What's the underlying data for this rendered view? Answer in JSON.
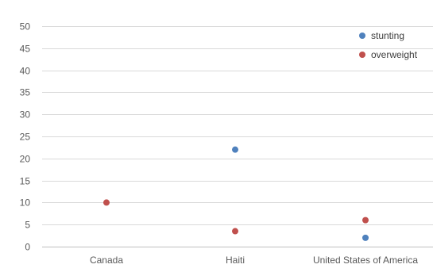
{
  "chart_data": {
    "type": "scatter",
    "title": "",
    "xlabel": "",
    "ylabel": "",
    "categories": [
      "Canada",
      "Haiti",
      "United States of America"
    ],
    "ylim": [
      0,
      50
    ],
    "yticks": [
      0,
      5,
      10,
      15,
      20,
      25,
      30,
      35,
      40,
      45,
      50
    ],
    "grid": true,
    "legend_position": "top-right",
    "series": [
      {
        "name": "stunting",
        "color": "#4f81bd",
        "values": [
          null,
          22,
          2
        ]
      },
      {
        "name": "overweight",
        "color": "#c0504d",
        "values": [
          10,
          3.5,
          6
        ]
      }
    ]
  }
}
